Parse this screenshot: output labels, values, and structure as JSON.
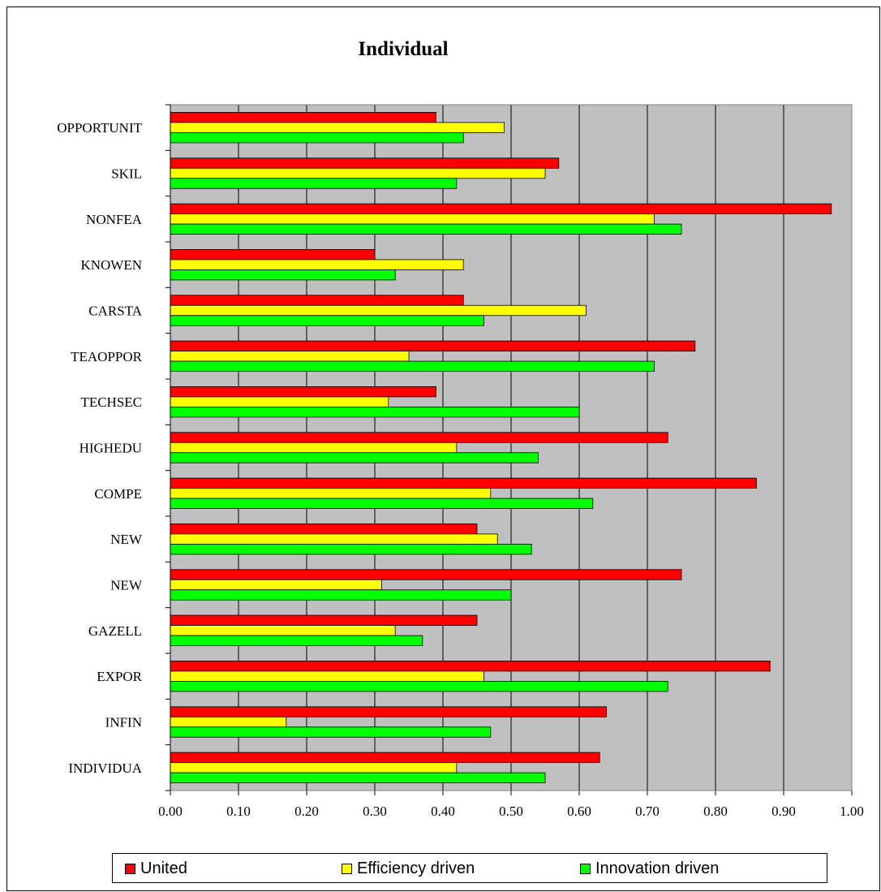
{
  "chart_data": {
    "type": "bar",
    "orientation": "horizontal",
    "title": "Individual",
    "categories": [
      "OPPORTUNIT",
      "SKIL",
      "NONFEA",
      "KNOWEN",
      "CARSTA",
      "TEAOPPOR",
      "TECHSEC",
      "HIGHEDU",
      "COMPE",
      "NEW",
      "NEW",
      "GAZELL",
      "EXPOR",
      "INFIN",
      "INDIVIDUA"
    ],
    "series": [
      {
        "name": "United",
        "color": "#ff0000",
        "values": [
          0.39,
          0.57,
          0.97,
          0.3,
          0.43,
          0.77,
          0.39,
          0.73,
          0.86,
          0.45,
          0.75,
          0.45,
          0.88,
          0.64,
          0.63
        ]
      },
      {
        "name": "Efficiency driven",
        "color": "#ffff00",
        "values": [
          0.49,
          0.55,
          0.71,
          0.43,
          0.61,
          0.35,
          0.32,
          0.42,
          0.47,
          0.48,
          0.31,
          0.33,
          0.46,
          0.17,
          0.42
        ]
      },
      {
        "name": "Innovation driven",
        "color": "#00ff00",
        "values": [
          0.43,
          0.42,
          0.75,
          0.33,
          0.46,
          0.71,
          0.6,
          0.54,
          0.62,
          0.53,
          0.5,
          0.37,
          0.73,
          0.47,
          0.55
        ]
      }
    ],
    "xlim": [
      0,
      1
    ],
    "x_ticks": [
      "0.00",
      "0.10",
      "0.20",
      "0.30",
      "0.40",
      "0.50",
      "0.60",
      "0.70",
      "0.80",
      "0.90",
      "1.00"
    ],
    "grid": true,
    "plot_background": "#c0c0c0",
    "legend_position": "bottom"
  }
}
